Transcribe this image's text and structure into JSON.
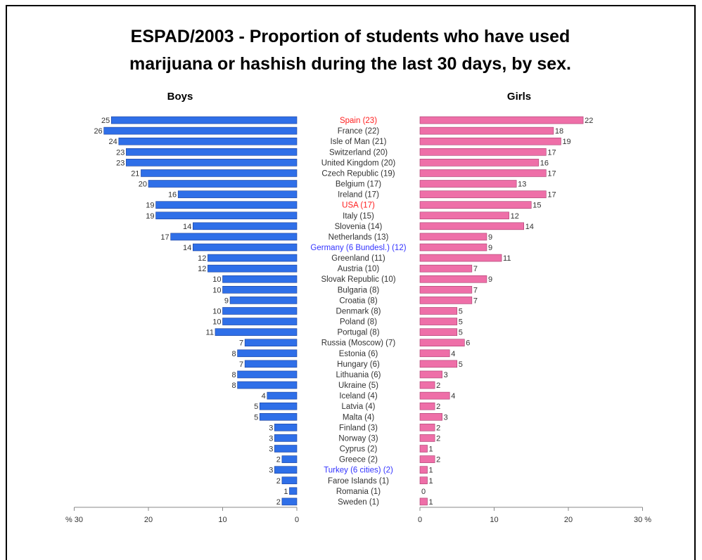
{
  "chart_data": {
    "type": "bar",
    "title_lines": [
      "ESPAD/2003 - Proportion of students who have used",
      "marijuana or hashish during the last 30 days, by sex."
    ],
    "left_label": "Boys",
    "right_label": "Girls",
    "x_range": [
      0,
      30
    ],
    "ticks": {
      "left": [
        "% 30",
        "20",
        "10",
        "0"
      ],
      "right": [
        "0",
        "10",
        "20",
        "30 %"
      ]
    },
    "colors": {
      "boys": "#2f6fe8",
      "girls": "#ee6fa8",
      "highlight_red": "#ff2020",
      "highlight_blue": "#3333ff",
      "text": "#333333"
    },
    "categories": [
      "Spain (23)",
      "France (22)",
      "Isle of Man (21)",
      "Switzerland (20)",
      "United Kingdom (20)",
      "Czech Republic (19)",
      "Belgium (17)",
      "Ireland (17)",
      "USA (17)",
      "Italy (15)",
      "Slovenia (14)",
      "Netherlands (13)",
      "Germany (6 Bundesl.) (12)",
      "Greenland (11)",
      "Austria (10)",
      "Slovak Republic (10)",
      "Bulgaria (8)",
      "Croatia (8)",
      "Denmark (8)",
      "Poland (8)",
      "Portugal (8)",
      "Russia (Moscow) (7)",
      "Estonia (6)",
      "Hungary (6)",
      "Lithuania (6)",
      "Ukraine (5)",
      "Iceland (4)",
      "Latvia (4)",
      "Malta (4)",
      "Finland (3)",
      "Norway (3)",
      "Cyprus (2)",
      "Greece (2)",
      "Turkey (6 cities) (2)",
      "Faroe Islands (1)",
      "Romania (1)",
      "Sweden (1)"
    ],
    "highlight": [
      "red",
      "",
      "",
      "",
      "",
      "",
      "",
      "",
      "red",
      "",
      "",
      "",
      "blue",
      "",
      "",
      "",
      "",
      "",
      "",
      "",
      "",
      "",
      "",
      "",
      "",
      "",
      "",
      "",
      "",
      "",
      "",
      "",
      "",
      "blue",
      "",
      "",
      ""
    ],
    "series": [
      {
        "name": "Boys",
        "values": [
          25,
          26,
          24,
          23,
          23,
          21,
          20,
          16,
          19,
          19,
          14,
          17,
          14,
          12,
          12,
          10,
          10,
          9,
          10,
          10,
          11,
          7,
          8,
          7,
          8,
          8,
          4,
          5,
          5,
          3,
          3,
          3,
          2,
          3,
          2,
          1,
          2
        ]
      },
      {
        "name": "Girls",
        "values": [
          22,
          18,
          19,
          17,
          16,
          17,
          13,
          17,
          15,
          12,
          14,
          9,
          9,
          11,
          7,
          9,
          7,
          7,
          5,
          5,
          5,
          6,
          4,
          5,
          3,
          2,
          4,
          2,
          3,
          2,
          2,
          1,
          2,
          1,
          1,
          0,
          1
        ]
      }
    ]
  }
}
